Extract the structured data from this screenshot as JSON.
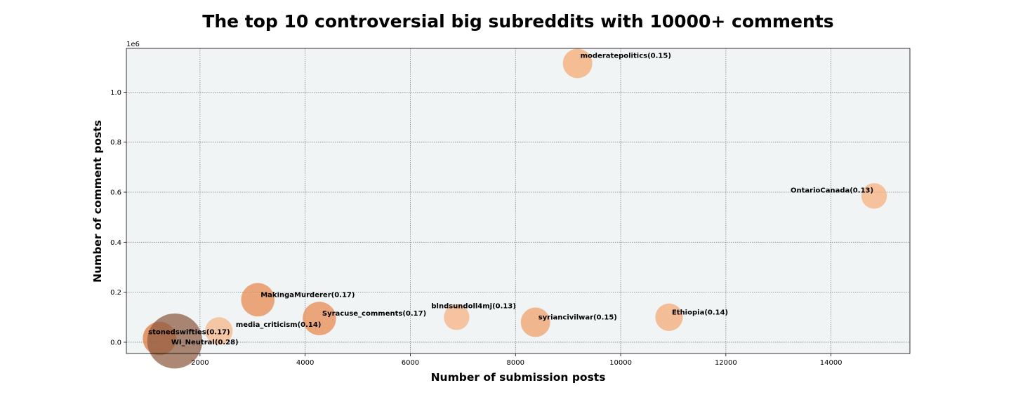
{
  "chart_data": {
    "type": "scatter",
    "title": "The top 10 controversial big subreddits with 10000+ comments",
    "xlabel": "Number of submission posts",
    "ylabel": "Number of comment posts",
    "y_offset_label": "1e6",
    "xlim": [
      600,
      15500
    ],
    "ylim": [
      -45000,
      1175000
    ],
    "x_ticks": [
      2000,
      4000,
      6000,
      8000,
      10000,
      12000,
      14000
    ],
    "x_tick_labels": [
      "2000",
      "4000",
      "6000",
      "8000",
      "10000",
      "12000",
      "14000"
    ],
    "y_ticks": [
      0,
      200000,
      400000,
      600000,
      800000,
      1000000
    ],
    "y_tick_labels": [
      "0.0",
      "0.2",
      "0.4",
      "0.6",
      "0.8",
      "1.0"
    ],
    "grid": true,
    "background": "#f0f4f5",
    "points": [
      {
        "label": "moderatepolitics(0.15)",
        "x": 9180,
        "y": 1115000,
        "controversiality": 0.15,
        "color": "#f5a76e"
      },
      {
        "label": "OntarioCanada(0.13)",
        "x": 14820,
        "y": 585000,
        "controversiality": 0.13,
        "color": "#f6ae7b"
      },
      {
        "label": "MakingaMurderer(0.17)",
        "x": 3100,
        "y": 170000,
        "controversiality": 0.17,
        "color": "#e8874c"
      },
      {
        "label": "Syracuse_comments(0.17)",
        "x": 4270,
        "y": 95000,
        "controversiality": 0.17,
        "color": "#e8874c"
      },
      {
        "label": "blndsundoll4mj(0.13)",
        "x": 6880,
        "y": 100000,
        "controversiality": 0.13,
        "color": "#f6b07e"
      },
      {
        "label": "syriancivilwar(0.15)",
        "x": 8380,
        "y": 80000,
        "controversiality": 0.15,
        "color": "#f09f66"
      },
      {
        "label": "Ethiopia(0.14)",
        "x": 10920,
        "y": 100000,
        "controversiality": 0.14,
        "color": "#f4a873"
      },
      {
        "label": "media_criticism(0.14)",
        "x": 2360,
        "y": 45000,
        "controversiality": 0.14,
        "color": "#f6b485"
      },
      {
        "label": "stonedswifties(0.17)",
        "x": 1230,
        "y": 15000,
        "controversiality": 0.17,
        "color": "#dd7436"
      },
      {
        "label": "WI_Neutral(0.28)",
        "x": 1520,
        "y": 5000,
        "controversiality": 0.28,
        "color": "#8c5a40"
      }
    ]
  }
}
